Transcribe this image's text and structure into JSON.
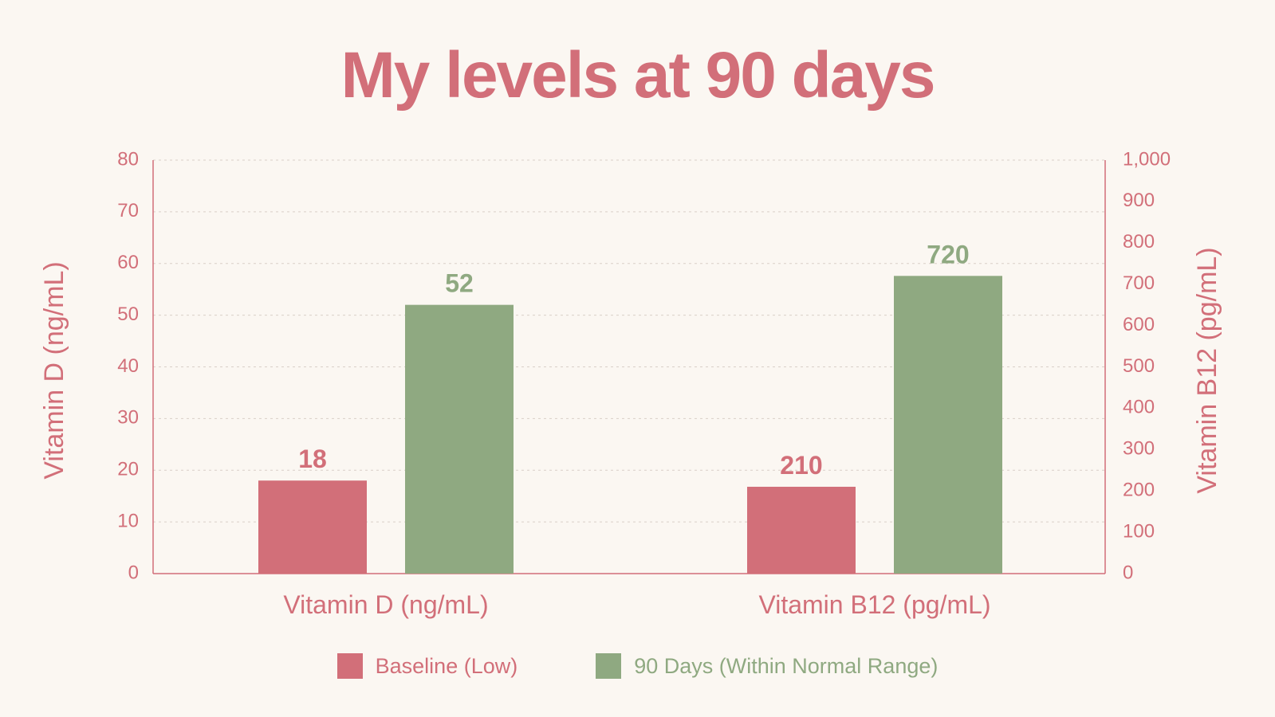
{
  "colors": {
    "baseline": "#d26f79",
    "ninety": "#8fa981",
    "accent": "#d26f79",
    "grid": "#d9cfc8"
  },
  "chart_data": {
    "type": "bar",
    "title": "My levels at 90 days",
    "categories": [
      "Vitamin D (ng/mL)",
      "Vitamin B12 (pg/mL)"
    ],
    "series": [
      {
        "name": "Baseline (Low)",
        "values": [
          18,
          210
        ]
      },
      {
        "name": "90 Days (Within Normal Range)",
        "values": [
          52,
          720
        ]
      }
    ],
    "data_labels": {
      "baseline": [
        "18",
        "210"
      ],
      "ninety": [
        "52",
        "720"
      ]
    },
    "y_left": {
      "label": "Vitamin D (ng/mL)",
      "ylim": [
        0,
        80
      ],
      "ticks": [
        0,
        10,
        20,
        30,
        40,
        50,
        60,
        70,
        80
      ],
      "tick_labels": [
        "0",
        "10",
        "20",
        "30",
        "40",
        "50",
        "60",
        "70",
        "80"
      ]
    },
    "y_right": {
      "label": "Vitamin B12 (pg/mL)",
      "ylim": [
        0,
        1000
      ],
      "ticks": [
        0,
        100,
        200,
        300,
        400,
        500,
        600,
        700,
        800,
        900,
        1000
      ],
      "tick_labels": [
        "0",
        "100",
        "200",
        "300",
        "400",
        "500",
        "600",
        "700",
        "800",
        "900",
        "1,000"
      ]
    },
    "grid": true,
    "legend_position": "bottom-center"
  }
}
